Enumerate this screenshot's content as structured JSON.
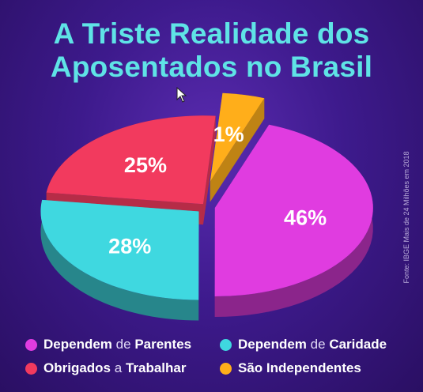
{
  "title": {
    "line1": "A Triste Realidade dos",
    "line2": "Aposentados no Brasil"
  },
  "source": "Fonte: IBGE Mais de 24 Milhões em 2018",
  "colors": {
    "background": "#3d1a8c",
    "title": "#5fe3e6",
    "magenta": "#e03ce0",
    "cyan": "#3fd8e0",
    "red": "#f23a5e",
    "orange": "#ffae1a"
  },
  "chart_data": {
    "type": "pie",
    "title": "A Triste Realidade dos Aposentados no Brasil",
    "slices": [
      {
        "label": "Dependem de Parentes",
        "value": 46,
        "display": "46%",
        "color": "#e03ce0"
      },
      {
        "label": "Dependem de Caridade",
        "value": 28,
        "display": "28%",
        "color": "#3fd8e0"
      },
      {
        "label": "Obrigados a Trabalhar",
        "value": 25,
        "display": "25%",
        "color": "#f23a5e"
      },
      {
        "label": "São Independentes",
        "value": 1,
        "display": "1%",
        "color": "#ffae1a"
      }
    ],
    "legend_position": "bottom"
  },
  "legend": [
    {
      "w1": "Dependem",
      "w2": "de",
      "w3": "Parentes",
      "color": "#e03ce0"
    },
    {
      "w1": "Dependem",
      "w2": "de",
      "w3": "Caridade",
      "color": "#3fd8e0"
    },
    {
      "w1": "Obrigados",
      "w2": "a",
      "w3": "Trabalhar",
      "color": "#f23a5e"
    },
    {
      "w1": "São",
      "w2": "",
      "w3": "Independentes",
      "color": "#ffae1a"
    }
  ]
}
